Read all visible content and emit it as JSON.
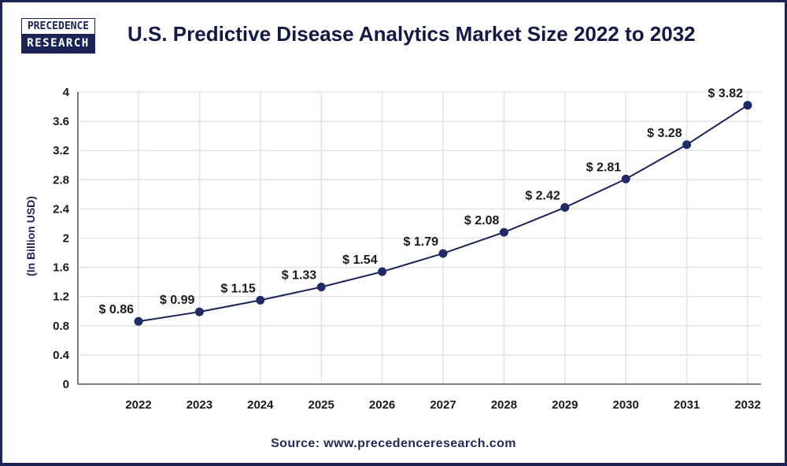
{
  "brand": {
    "logo_top": "PRECEDENCE",
    "logo_bottom": "RESEARCH"
  },
  "colors": {
    "frame": "#1b2357",
    "line": "#1b2357",
    "marker": "#1f2a66",
    "grid": "#e3e3e3",
    "axis": "#555555",
    "title": "#131845"
  },
  "footer": {
    "source": "Source: www.precedenceresearch.com"
  },
  "chart_data": {
    "type": "line",
    "title": "U.S. Predictive Disease Analytics Market Size 2022 to 2032",
    "xlabel": "",
    "ylabel": "(In Billion USD)",
    "categories": [
      "2022",
      "2023",
      "2024",
      "2025",
      "2026",
      "2027",
      "2028",
      "2029",
      "2030",
      "2031",
      "2032"
    ],
    "series": [
      {
        "name": "U.S. Predictive Disease Analytics Market Size",
        "values": [
          0.86,
          0.99,
          1.15,
          1.33,
          1.54,
          1.79,
          2.08,
          2.42,
          2.81,
          3.28,
          3.82
        ],
        "labels": [
          "$ 0.86",
          "$ 0.99",
          "$ 1.15",
          "$ 1.33",
          "$ 1.54",
          "$ 1.79",
          "$ 2.08",
          "$ 2.42",
          "$ 2.81",
          "$ 3.28",
          "$ 3.82"
        ]
      }
    ],
    "yticks": [
      "0",
      "0.4",
      "0.8",
      "1.2",
      "1.6",
      "2",
      "2.4",
      "2.8",
      "3.2",
      "3.6",
      "4"
    ],
    "ytick_values": [
      0,
      0.4,
      0.8,
      1.2,
      1.6,
      2,
      2.4,
      2.8,
      3.2,
      3.6,
      4
    ],
    "ylim": [
      0,
      4
    ],
    "grid": true,
    "legend": "none"
  }
}
